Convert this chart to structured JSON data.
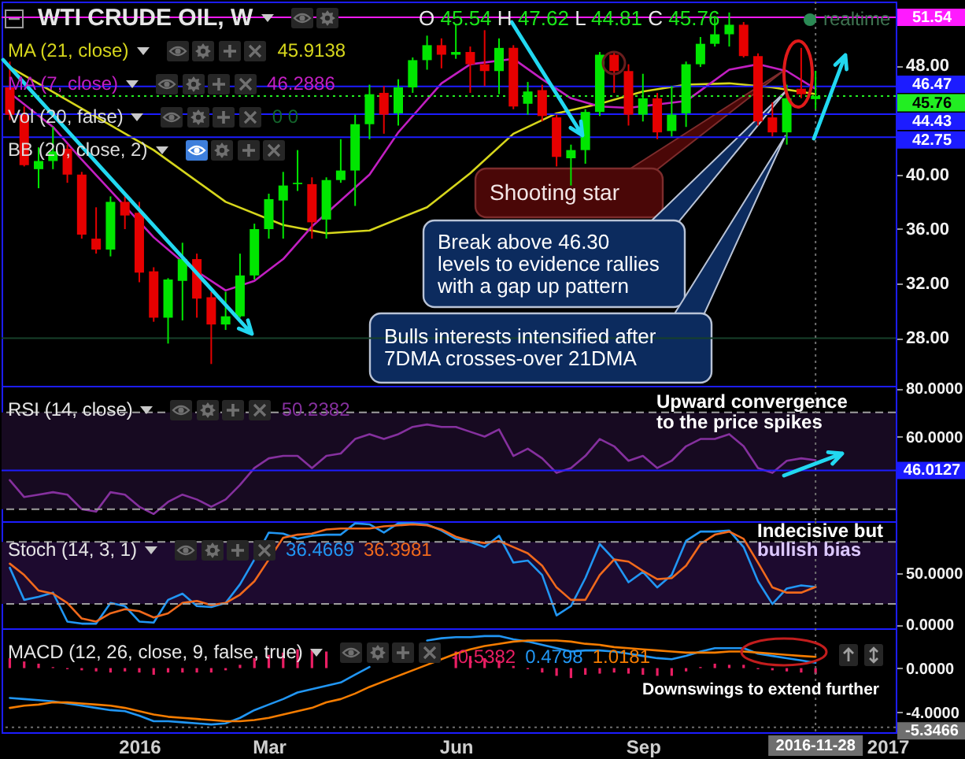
{
  "chart_data": [
    {
      "type": "candlestick",
      "title": "WTI CRUDE OIL, W",
      "subtitle": "O 45.54 H 47.62 L 44.81 C 45.76",
      "x": [
        "2015-11-02",
        "2015-11-09",
        "2015-11-16",
        "2015-11-23",
        "2015-11-30",
        "2015-12-07",
        "2015-12-14",
        "2015-12-21",
        "2015-12-28",
        "2016-01-04",
        "2016-01-11",
        "2016-01-18",
        "2016-01-25",
        "2016-02-01",
        "2016-02-08",
        "2016-02-15",
        "2016-02-22",
        "2016-02-29",
        "2016-03-07",
        "2016-03-14",
        "2016-03-21",
        "2016-03-28",
        "2016-04-04",
        "2016-04-11",
        "2016-04-18",
        "2016-04-25",
        "2016-05-02",
        "2016-05-09",
        "2016-05-16",
        "2016-05-23",
        "2016-05-30",
        "2016-06-06",
        "2016-06-13",
        "2016-06-20",
        "2016-06-27",
        "2016-07-04",
        "2016-07-11",
        "2016-07-18",
        "2016-07-25",
        "2016-08-01",
        "2016-08-08",
        "2016-08-15",
        "2016-08-22",
        "2016-08-29",
        "2016-09-05",
        "2016-09-12",
        "2016-09-19",
        "2016-09-26",
        "2016-10-03",
        "2016-10-10",
        "2016-10-17",
        "2016-10-24",
        "2016-10-31",
        "2016-11-07",
        "2016-11-14",
        "2016-11-21",
        "2016-11-28"
      ],
      "ohlc": [
        [
          46.4,
          48.3,
          44.0,
          44.4
        ],
        [
          44.4,
          45.0,
          40.6,
          40.7
        ],
        [
          40.4,
          42.0,
          39.0,
          41.0
        ],
        [
          41.0,
          43.5,
          40.4,
          41.7
        ],
        [
          41.9,
          42.2,
          39.4,
          40.0
        ],
        [
          40.0,
          40.2,
          35.3,
          35.6
        ],
        [
          35.3,
          37.6,
          34.2,
          34.5
        ],
        [
          34.5,
          38.4,
          34.0,
          38.0
        ],
        [
          38.0,
          38.4,
          36.0,
          37.0
        ],
        [
          37.2,
          38.0,
          32.1,
          32.8
        ],
        [
          32.9,
          33.2,
          29.2,
          29.5
        ],
        [
          29.5,
          32.4,
          27.6,
          32.3
        ],
        [
          32.2,
          35.0,
          29.3,
          33.8
        ],
        [
          33.8,
          34.2,
          29.5,
          30.9
        ],
        [
          31.0,
          31.4,
          26.1,
          29.0
        ],
        [
          29.0,
          31.4,
          28.6,
          29.6
        ],
        [
          29.6,
          34.2,
          29.5,
          32.6
        ],
        [
          32.6,
          36.4,
          32.3,
          36.0
        ],
        [
          36.0,
          38.6,
          35.3,
          38.2
        ],
        [
          38.1,
          40.2,
          35.3,
          39.2
        ],
        [
          39.3,
          41.8,
          38.8,
          39.4
        ],
        [
          39.3,
          39.8,
          35.3,
          36.5
        ],
        [
          36.7,
          39.8,
          35.3,
          39.6
        ],
        [
          39.6,
          42.6,
          39.4,
          40.3
        ],
        [
          40.3,
          44.4,
          37.7,
          43.7
        ],
        [
          43.7,
          46.6,
          42.6,
          45.9
        ],
        [
          46.0,
          46.5,
          43.0,
          44.4
        ],
        [
          44.5,
          47.0,
          43.6,
          46.4
        ],
        [
          46.4,
          48.6,
          46.0,
          48.4
        ],
        [
          48.4,
          50.2,
          47.7,
          49.5
        ],
        [
          49.5,
          50.0,
          47.8,
          48.8
        ],
        [
          48.8,
          51.0,
          48.5,
          49.0
        ],
        [
          49.0,
          49.4,
          46.0,
          48.1
        ],
        [
          48.1,
          50.6,
          46.5,
          47.6
        ],
        [
          47.6,
          50.0,
          45.9,
          49.3
        ],
        [
          49.3,
          49.5,
          44.8,
          45.0
        ],
        [
          45.2,
          46.8,
          44.4,
          46.1
        ],
        [
          46.2,
          46.6,
          43.9,
          44.3
        ],
        [
          44.2,
          44.4,
          40.6,
          41.3
        ],
        [
          41.2,
          42.2,
          39.2,
          41.8
        ],
        [
          41.8,
          44.8,
          40.8,
          44.6
        ],
        [
          44.6,
          49.0,
          44.3,
          48.8
        ],
        [
          48.8,
          49.0,
          46.0,
          47.6
        ],
        [
          47.6,
          48.1,
          43.6,
          44.4
        ],
        [
          44.4,
          47.4,
          43.9,
          45.6
        ],
        [
          45.6,
          46.0,
          42.6,
          43.1
        ],
        [
          43.2,
          46.5,
          42.8,
          44.4
        ],
        [
          44.5,
          48.3,
          43.5,
          48.1
        ],
        [
          48.1,
          50.1,
          47.9,
          49.6
        ],
        [
          49.6,
          51.6,
          49.4,
          50.3
        ],
        [
          50.3,
          51.9,
          49.4,
          51.0
        ],
        [
          51.0,
          51.2,
          48.6,
          48.7
        ],
        [
          48.7,
          48.9,
          43.6,
          43.9
        ],
        [
          44.2,
          45.3,
          42.8,
          43.1
        ],
        [
          43.1,
          46.6,
          42.2,
          45.6
        ],
        [
          46.3,
          49.3,
          45.6,
          45.9
        ],
        [
          45.54,
          47.62,
          44.81,
          45.76
        ]
      ],
      "colors": [
        "#e60000",
        "#e60000",
        "#00e600",
        "#00e600",
        "#e60000",
        "#e60000",
        "#e60000",
        "#00e600",
        "#e60000",
        "#e60000",
        "#e60000",
        "#00e600",
        "#00e600",
        "#e60000",
        "#e60000",
        "#00e600",
        "#00e600",
        "#00e600",
        "#00e600",
        "#00e600",
        "#00e600",
        "#e60000",
        "#00e600",
        "#00e600",
        "#00e600",
        "#00e600",
        "#e60000",
        "#00e600",
        "#00e600",
        "#00e600",
        "#e60000",
        "#00e600",
        "#e60000",
        "#e60000",
        "#00e600",
        "#e60000",
        "#00e600",
        "#e60000",
        "#e60000",
        "#00e600",
        "#00e600",
        "#00e600",
        "#e60000",
        "#e60000",
        "#00e600",
        "#e60000",
        "#00e600",
        "#00e600",
        "#00e600",
        "#00e600",
        "#00e600",
        "#e60000",
        "#e60000",
        "#e60000",
        "#00e600",
        "#e60000",
        "#00e600"
      ],
      "series": [
        {
          "name": "MA (21, close)",
          "type": "line",
          "color": "#d6d61c",
          "x": [
            "2015-11-02",
            "2016-01-11",
            "2016-02-15",
            "2016-03-14",
            "2016-04-04",
            "2016-04-25",
            "2016-05-23",
            "2016-06-13",
            "2016-07-04",
            "2016-07-25",
            "2016-08-15",
            "2016-09-05",
            "2016-09-26",
            "2016-10-17",
            "2016-11-07",
            "2016-11-28"
          ],
          "values": [
            47.9,
            41.8,
            38.0,
            36.3,
            35.7,
            35.9,
            37.6,
            40.1,
            43.0,
            44.5,
            45.2,
            46.1,
            46.6,
            46.7,
            46.4,
            45.9138
          ]
        },
        {
          "name": "MA (7, close)",
          "type": "line",
          "color": "#c21fc2",
          "x": [
            "2015-11-02",
            "2015-11-23",
            "2015-12-07",
            "2016-01-11",
            "2016-01-25",
            "2016-02-15",
            "2016-02-29",
            "2016-03-14",
            "2016-03-28",
            "2016-04-25",
            "2016-05-09",
            "2016-05-30",
            "2016-06-13",
            "2016-07-04",
            "2016-07-18",
            "2016-08-01",
            "2016-08-15",
            "2016-08-29",
            "2016-09-26",
            "2016-10-17",
            "2016-10-31",
            "2016-11-14",
            "2016-11-28"
          ],
          "values": [
            46.0,
            43.5,
            41.1,
            35.4,
            33.6,
            31.5,
            32.2,
            33.8,
            36.2,
            40.0,
            43.1,
            46.7,
            48.1,
            48.5,
            47.0,
            45.6,
            45.0,
            44.9,
            45.4,
            47.7,
            48.1,
            47.6,
            46.2886
          ]
        }
      ],
      "xlim": [
        "2015-10-29",
        "2017-01-06"
      ],
      "ylim": [
        24.5,
        52.7
      ],
      "yticks": [
        {
          "value": 28,
          "label": "28.00"
        },
        {
          "value": 32,
          "label": "32.00"
        },
        {
          "value": 36,
          "label": "36.00"
        },
        {
          "value": 40,
          "label": "40.00"
        },
        {
          "value": 48,
          "label": "48.00"
        }
      ],
      "tick_labels": "y",
      "legend": "top left",
      "ref_lines": [
        {
          "axis": "y",
          "value": 51.54,
          "label": "51.54",
          "color": "#ff1aff"
        },
        {
          "axis": "y",
          "value": 46.47,
          "label": "46.47",
          "color": "#1c1cff"
        },
        {
          "axis": "y",
          "value": 45.76,
          "label": "45.76",
          "color": "#22ee22",
          "line_style": "dotted"
        },
        {
          "axis": "y",
          "value": 44.43,
          "label": "44.43",
          "color": "#1c1cff"
        },
        {
          "axis": "y",
          "value": 42.75,
          "label": "42.75",
          "color": "#1c1cff"
        },
        {
          "axis": "y",
          "value": 28,
          "color": "#17402a"
        },
        {
          "axis": "x",
          "value": "2016-11-28",
          "color": "#6e6e6e",
          "line_style": "dotted"
        }
      ],
      "annotations": [
        "45.9138",
        "46.2886",
        "Vol (20, false)",
        "0 0",
        "BB (20, close, 2)",
        "realtime",
        "Shooting star",
        "Break above 46.30 levels to evidence rallies with a gap up pattern",
        "Bulls interests intensified after 7DMA crosses-over 21DMA"
      ]
    },
    {
      "type": "line",
      "title": "RSI (14, close)",
      "x": [
        "2015-11-02",
        "2015-11-09",
        "2015-11-16",
        "2015-11-23",
        "2015-11-30",
        "2015-12-07",
        "2015-12-14",
        "2015-12-21",
        "2015-12-28",
        "2016-01-04",
        "2016-01-11",
        "2016-01-18",
        "2016-01-25",
        "2016-02-01",
        "2016-02-08",
        "2016-02-15",
        "2016-02-22",
        "2016-02-29",
        "2016-03-07",
        "2016-03-14",
        "2016-03-21",
        "2016-03-28",
        "2016-04-04",
        "2016-04-11",
        "2016-04-18",
        "2016-04-25",
        "2016-05-02",
        "2016-05-09",
        "2016-05-16",
        "2016-05-23",
        "2016-05-30",
        "2016-06-06",
        "2016-06-13",
        "2016-06-20",
        "2016-06-27",
        "2016-07-04",
        "2016-07-11",
        "2016-07-18",
        "2016-07-25",
        "2016-08-01",
        "2016-08-08",
        "2016-08-15",
        "2016-08-22",
        "2016-08-29",
        "2016-09-05",
        "2016-09-12",
        "2016-09-19",
        "2016-09-26",
        "2016-10-03",
        "2016-10-10",
        "2016-10-17",
        "2016-10-24",
        "2016-10-31",
        "2016-11-07",
        "2016-11-14",
        "2016-11-21",
        "2016-11-28"
      ],
      "series": [
        {
          "color": "#85309e",
          "values": [
            42,
            35,
            36,
            37,
            36,
            30,
            29,
            37,
            36,
            31,
            28,
            33,
            36,
            34,
            31,
            34,
            40,
            47,
            51,
            52,
            52,
            47,
            52,
            53,
            59,
            61,
            59,
            61,
            64,
            65,
            64,
            64,
            62,
            60,
            63,
            52,
            55,
            51,
            45,
            47,
            52,
            59,
            56,
            50,
            52,
            47,
            50,
            56,
            59,
            59,
            61,
            56,
            47,
            45,
            50,
            51,
            50.2382
          ]
        }
      ],
      "xlim": [
        "2015-10-29",
        "2017-01-06"
      ],
      "ylim": [
        25,
        81
      ],
      "yticks": [
        {
          "value": 80,
          "label": "80.0000"
        },
        {
          "value": 60,
          "label": "60.0000"
        }
      ],
      "tick_labels": "y",
      "bands": [
        {
          "axis": "y",
          "from": 30,
          "to": 70,
          "color": "#170a21"
        }
      ],
      "ref_lines": [
        {
          "axis": "y",
          "value": 70,
          "color": "#9e9e9e",
          "line_style": "dashed"
        },
        {
          "axis": "y",
          "value": 30,
          "color": "#9e9e9e",
          "line_style": "dashed"
        },
        {
          "axis": "y",
          "value": 46.0127,
          "label": "46.0127",
          "color": "#1c1cff"
        },
        {
          "axis": "x",
          "value": "2016-11-28",
          "color": "#6e6e6e",
          "line_style": "dotted"
        }
      ],
      "annotations": [
        "50.2382",
        "Upward convergence to the price spikes"
      ]
    },
    {
      "type": "line",
      "title": "Stoch (14, 3, 1)",
      "x": [
        "2015-11-02",
        "2015-11-09",
        "2015-11-16",
        "2015-11-23",
        "2015-11-30",
        "2015-12-07",
        "2015-12-14",
        "2015-12-21",
        "2015-12-28",
        "2016-01-04",
        "2016-01-11",
        "2016-01-18",
        "2016-01-25",
        "2016-02-01",
        "2016-02-08",
        "2016-02-15",
        "2016-02-22",
        "2016-02-29",
        "2016-03-07",
        "2016-03-14",
        "2016-03-21",
        "2016-03-28",
        "2016-04-04",
        "2016-04-11",
        "2016-04-18",
        "2016-04-25",
        "2016-05-02",
        "2016-05-09",
        "2016-05-16",
        "2016-05-23",
        "2016-05-30",
        "2016-06-06",
        "2016-06-13",
        "2016-06-20",
        "2016-06-27",
        "2016-07-04",
        "2016-07-11",
        "2016-07-18",
        "2016-07-25",
        "2016-08-01",
        "2016-08-08",
        "2016-08-15",
        "2016-08-22",
        "2016-08-29",
        "2016-09-05",
        "2016-09-12",
        "2016-09-19",
        "2016-09-26",
        "2016-10-03",
        "2016-10-10",
        "2016-10-17",
        "2016-10-24",
        "2016-10-31",
        "2016-11-07",
        "2016-11-14",
        "2016-11-21",
        "2016-11-28"
      ],
      "series": [
        {
          "color": "#2196f3",
          "values": [
            55,
            24,
            27,
            31,
            3,
            1,
            1,
            21,
            18,
            3,
            2,
            24,
            30,
            18,
            17,
            21,
            39,
            63,
            89,
            88,
            83,
            86,
            87,
            87,
            98,
            97,
            89,
            98,
            98,
            97,
            91,
            83,
            80,
            75,
            86,
            60,
            62,
            48,
            9,
            18,
            45,
            78,
            63,
            41,
            51,
            36,
            48,
            81,
            90,
            90,
            91,
            75,
            42,
            20,
            35,
            38,
            36.4669
          ]
        },
        {
          "color": "#f0691c",
          "values": [
            59,
            48,
            33,
            30,
            21,
            6,
            3,
            11,
            15,
            13,
            7,
            11,
            21,
            23,
            19,
            21,
            29,
            42,
            63,
            84,
            87,
            88,
            92,
            93,
            93,
            93,
            95,
            96,
            97,
            96,
            92,
            85,
            81,
            79,
            81,
            75,
            69,
            57,
            36,
            24,
            24,
            48,
            63,
            61,
            52,
            44,
            45,
            57,
            78,
            87,
            90,
            83,
            60,
            36,
            31,
            31,
            36.3981
          ]
        }
      ],
      "xlim": [
        "2015-10-29",
        "2017-01-06"
      ],
      "ylim": [
        -3.5,
        100
      ],
      "yticks": [
        {
          "value": 50,
          "label": "50.0000"
        },
        {
          "value": 0,
          "label": "0.0000"
        }
      ],
      "tick_labels": "y",
      "bands": [
        {
          "axis": "y",
          "from": 20,
          "to": 80,
          "color": "#1d0a2f"
        }
      ],
      "ref_lines": [
        {
          "axis": "y",
          "value": 80,
          "color": "#9e9e9e",
          "line_style": "dashed"
        },
        {
          "axis": "y",
          "value": 20,
          "color": "#9e9e9e",
          "line_style": "dashed"
        },
        {
          "axis": "x",
          "value": "2016-11-28",
          "color": "#6e6e6e",
          "line_style": "dotted"
        }
      ],
      "annotations": [
        "36.4669",
        "36.3981",
        "Indecisive but",
        "bullish bias"
      ]
    },
    {
      "type": "line",
      "title": "MACD (12, 26, close, 9, false, true)",
      "x": [
        "2015-11-02",
        "2015-11-09",
        "2015-11-16",
        "2015-11-23",
        "2015-11-30",
        "2015-12-07",
        "2015-12-14",
        "2015-12-21",
        "2015-12-28",
        "2016-01-04",
        "2016-01-11",
        "2016-01-18",
        "2016-01-25",
        "2016-02-01",
        "2016-02-08",
        "2016-02-15",
        "2016-02-22",
        "2016-02-29",
        "2016-03-07",
        "2016-03-14",
        "2016-03-21",
        "2016-03-28",
        "2016-04-04",
        "2016-04-11",
        "2016-04-18",
        "2016-04-25",
        "2016-05-02",
        "2016-05-09",
        "2016-05-16",
        "2016-05-23",
        "2016-05-30",
        "2016-06-06",
        "2016-06-13",
        "2016-06-20",
        "2016-06-27",
        "2016-07-04",
        "2016-07-11",
        "2016-07-18",
        "2016-07-25",
        "2016-08-01",
        "2016-08-08",
        "2016-08-15",
        "2016-08-22",
        "2016-08-29",
        "2016-09-05",
        "2016-09-12",
        "2016-09-19",
        "2016-09-26",
        "2016-10-03",
        "2016-10-10",
        "2016-10-17",
        "2016-10-24",
        "2016-10-31",
        "2016-11-07",
        "2016-11-14",
        "2016-11-21",
        "2016-11-28"
      ],
      "series": [
        {
          "type": "bar",
          "color": "#e91e63",
          "values": [
            0.9,
            0.6,
            0.4,
            0.1,
            -0.1,
            -0.2,
            -0.3,
            -0.4,
            -0.3,
            -0.4,
            -0.6,
            -0.4,
            -0.4,
            -0.4,
            -0.4,
            -0.2,
            0.3,
            0.9,
            1.2,
            1.4,
            1.7,
            1.7,
            1.5,
            null,
            null,
            null,
            null,
            null,
            null,
            null,
            null,
            1.5,
            1.1,
            0.9,
            0.7,
            0.2,
            -0.1,
            -0.4,
            -0.7,
            -0.9,
            -0.6,
            -0.5,
            -0.4,
            -0.5,
            -0.6,
            -0.7,
            -0.7,
            -0.3,
            0.1,
            0.4,
            0.3,
            0.3,
            -0.1,
            -0.2,
            -0.3,
            -0.4,
            -0.5382
          ]
        },
        {
          "color": "#2196f3",
          "values": [
            -2.7,
            -2.8,
            -2.9,
            -3.0,
            -3.2,
            -3.4,
            -3.6,
            -3.8,
            -3.9,
            -4.3,
            -4.8,
            -4.8,
            -4.9,
            -5.0,
            -5.1,
            -5.0,
            -4.5,
            -3.8,
            -3.3,
            -2.8,
            -2.2,
            -1.9,
            -1.6,
            -1.3,
            -0.6,
            0.1,
            null,
            null,
            null,
            2.5,
            2.7,
            2.8,
            2.8,
            2.9,
            2.9,
            2.6,
            2.4,
            2.1,
            1.8,
            1.5,
            1.6,
            1.6,
            1.5,
            1.3,
            1.1,
            0.9,
            0.8,
            1.1,
            1.5,
            1.8,
            1.8,
            1.8,
            1.3,
            1.1,
            0.9,
            0.7,
            0.4798
          ]
        },
        {
          "color": "#f57c00",
          "values": [
            -3.6,
            -3.4,
            -3.3,
            -3.1,
            -3.1,
            -3.2,
            -3.3,
            -3.4,
            -3.6,
            -3.9,
            -4.2,
            -4.4,
            -4.5,
            -4.6,
            -4.7,
            -4.8,
            -4.8,
            -4.7,
            -4.5,
            -4.2,
            -3.9,
            -3.6,
            -3.1,
            -2.8,
            -2.3,
            -1.7,
            -1.2,
            -0.7,
            -0.2,
            0.3,
            0.8,
            1.3,
            1.7,
            2.0,
            2.2,
            2.4,
            2.5,
            2.5,
            2.5,
            2.4,
            2.2,
            2.1,
            1.9,
            1.8,
            1.7,
            1.6,
            1.5,
            1.4,
            1.4,
            1.4,
            1.5,
            1.5,
            1.4,
            1.3,
            1.2,
            1.1,
            1.0181
          ]
        }
      ],
      "xlim": [
        "2015-10-29",
        "2017-01-06"
      ],
      "xticks": [
        {
          "value": "2016-01-04",
          "label": "2016"
        },
        {
          "value": "2016-03-07",
          "label": "Mar"
        },
        {
          "value": "2016-06-06",
          "label": "Jun"
        },
        {
          "value": "2016-09-05",
          "label": "Sep"
        },
        {
          "value": "2017-01-02",
          "label": "2017"
        }
      ],
      "ylim": [
        -5.8,
        3.6
      ],
      "yticks": [
        {
          "value": 0,
          "label": "0.0000"
        },
        {
          "value": -4,
          "label": "-4.0000"
        }
      ],
      "ref_lines": [
        {
          "axis": "y",
          "value": -5.3466,
          "label": "-5.3466",
          "color": "#6e6e6e",
          "line_style": "dotted"
        },
        {
          "axis": "x",
          "value": "2016-11-28",
          "label": "2016-11-28",
          "color": "#6e6e6e",
          "line_style": "dotted"
        }
      ],
      "annotations": [
        "-0.5382",
        "0.4798",
        "1.0181",
        "Downswings to extend further"
      ]
    }
  ]
}
